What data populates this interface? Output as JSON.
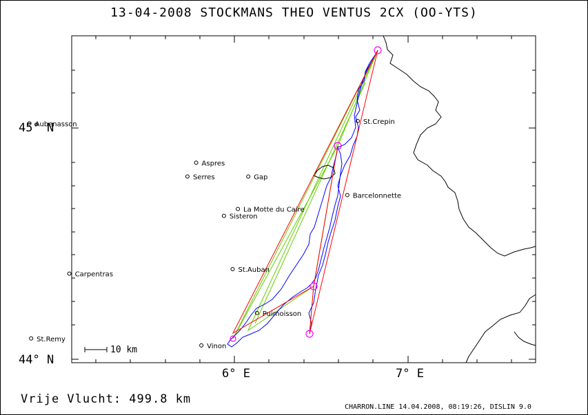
{
  "title": "13-04-2008    STOCKMANS THEO    VENTUS 2CX (OO-YTS)",
  "footer": {
    "distance": "Vrije Vlucht:  499.8 km",
    "credit": "CHARRON.LINE 14.04.2008, 08:19:26, DISLIN 9.0"
  },
  "axes": {
    "latitude_labels": [
      "45° N",
      "44° N"
    ],
    "longitude_labels": [
      "6° E",
      "7° E"
    ]
  },
  "scale_bar": "10 km",
  "towns": [
    {
      "name": "Aubenasson",
      "lon": 4.82,
      "lat": 45.02
    },
    {
      "name": "Aspres",
      "lon": 5.78,
      "lat": 44.85
    },
    {
      "name": "Serres",
      "lon": 5.73,
      "lat": 44.79
    },
    {
      "name": "Gap",
      "lon": 6.08,
      "lat": 44.79
    },
    {
      "name": "St.Crepin",
      "lon": 6.71,
      "lat": 45.03
    },
    {
      "name": "Barcelonnette",
      "lon": 6.65,
      "lat": 44.71
    },
    {
      "name": "La Motte du Caire",
      "lon": 6.02,
      "lat": 44.65
    },
    {
      "name": "Sisteron",
      "lon": 5.94,
      "lat": 44.62
    },
    {
      "name": "St.Auban",
      "lon": 5.99,
      "lat": 44.39
    },
    {
      "name": "Carpentras",
      "lon": 5.05,
      "lat": 44.37
    },
    {
      "name": "Puimoisson",
      "lon": 6.13,
      "lat": 44.2
    },
    {
      "name": "St.Remy",
      "lon": 4.83,
      "lat": 44.09
    },
    {
      "name": "Vinon",
      "lon": 5.81,
      "lat": 44.06
    }
  ],
  "colors": {
    "track": "#0000ff",
    "task_line": "#ff0000",
    "leg_line": "#66cc00",
    "turnpoint": "#ff00ff",
    "border": "#000000"
  }
}
